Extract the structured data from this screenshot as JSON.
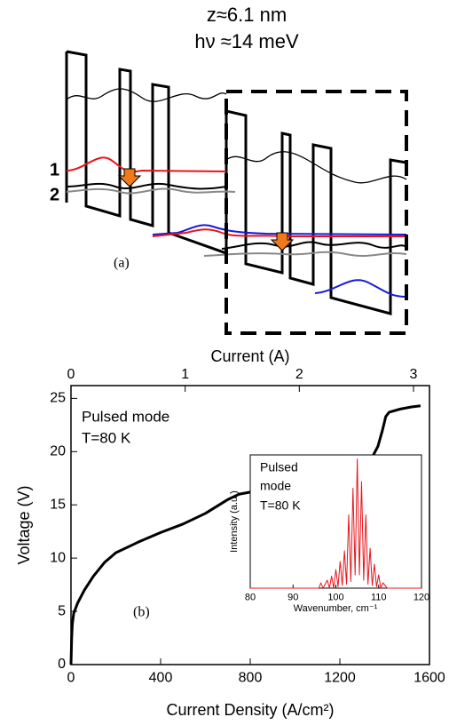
{
  "diagram": {
    "title": "z≈6.1 nm",
    "subtitle": "hν ≈14 meV",
    "labels": [
      "1",
      "2"
    ],
    "panel_label": "(a)"
  },
  "chart_data": [
    {
      "type": "line",
      "x_label": "Current Density (A/cm²)",
      "x2_label": "Current (A)",
      "y_label": "Voltage (V)",
      "annotations": [
        "Pulsed mode",
        "T=80 K",
        "(b)"
      ],
      "color": "#000000",
      "x": [
        0,
        3,
        6,
        12,
        30,
        60,
        100,
        150,
        200,
        250,
        300,
        400,
        500,
        600,
        700,
        750,
        800,
        900,
        1000,
        1100,
        1200,
        1300,
        1340,
        1370,
        1390,
        1405,
        1420,
        1470,
        1520,
        1560
      ],
      "values": [
        0,
        2.5,
        3.8,
        4.8,
        5.8,
        7,
        8.3,
        9.6,
        10.5,
        11,
        11.5,
        12.4,
        13.2,
        14.2,
        15.5,
        16,
        16.2,
        16.6,
        17,
        17.5,
        18,
        18.6,
        19.3,
        20.5,
        22,
        23.3,
        23.7,
        24,
        24.2,
        24.3
      ],
      "xlim": [
        0,
        1600
      ],
      "xticks": [
        0,
        400,
        800,
        1200,
        1600
      ],
      "x2lim": [
        0,
        3.14
      ],
      "x2ticks": [
        0,
        1,
        2,
        3
      ],
      "ylim": [
        0,
        26.2
      ],
      "yticks": [
        0,
        5,
        10,
        15,
        20,
        25
      ]
    },
    {
      "type": "line",
      "x_label": "Wavenumber, cm⁻¹",
      "y_label": "Intensity (a.u.)",
      "annotations": [
        "Pulsed",
        "mode",
        "T=80 K"
      ],
      "color": "#e8141b",
      "x": [
        80,
        96,
        96.5,
        97,
        98,
        98.5,
        99,
        99.5,
        100,
        100.5,
        101,
        101.5,
        102,
        102.5,
        103,
        103.5,
        104,
        104.5,
        105,
        105.5,
        106,
        106.5,
        107,
        107.5,
        108,
        108.5,
        109,
        109.5,
        110,
        110.5,
        111,
        112,
        120
      ],
      "values": [
        0,
        0,
        0.04,
        0,
        0.06,
        0,
        0.09,
        0,
        0.14,
        0.01,
        0.2,
        0.02,
        0.28,
        0.03,
        0.55,
        0.05,
        0.75,
        0.1,
        0.97,
        0.1,
        0.8,
        0.06,
        0.55,
        0.03,
        0.3,
        0.02,
        0.18,
        0.01,
        0.1,
        0,
        0.04,
        0,
        0
      ],
      "xlim": [
        80,
        120
      ],
      "xticks": [
        80,
        90,
        100,
        110,
        120
      ],
      "ylim": [
        0,
        1
      ]
    }
  ]
}
